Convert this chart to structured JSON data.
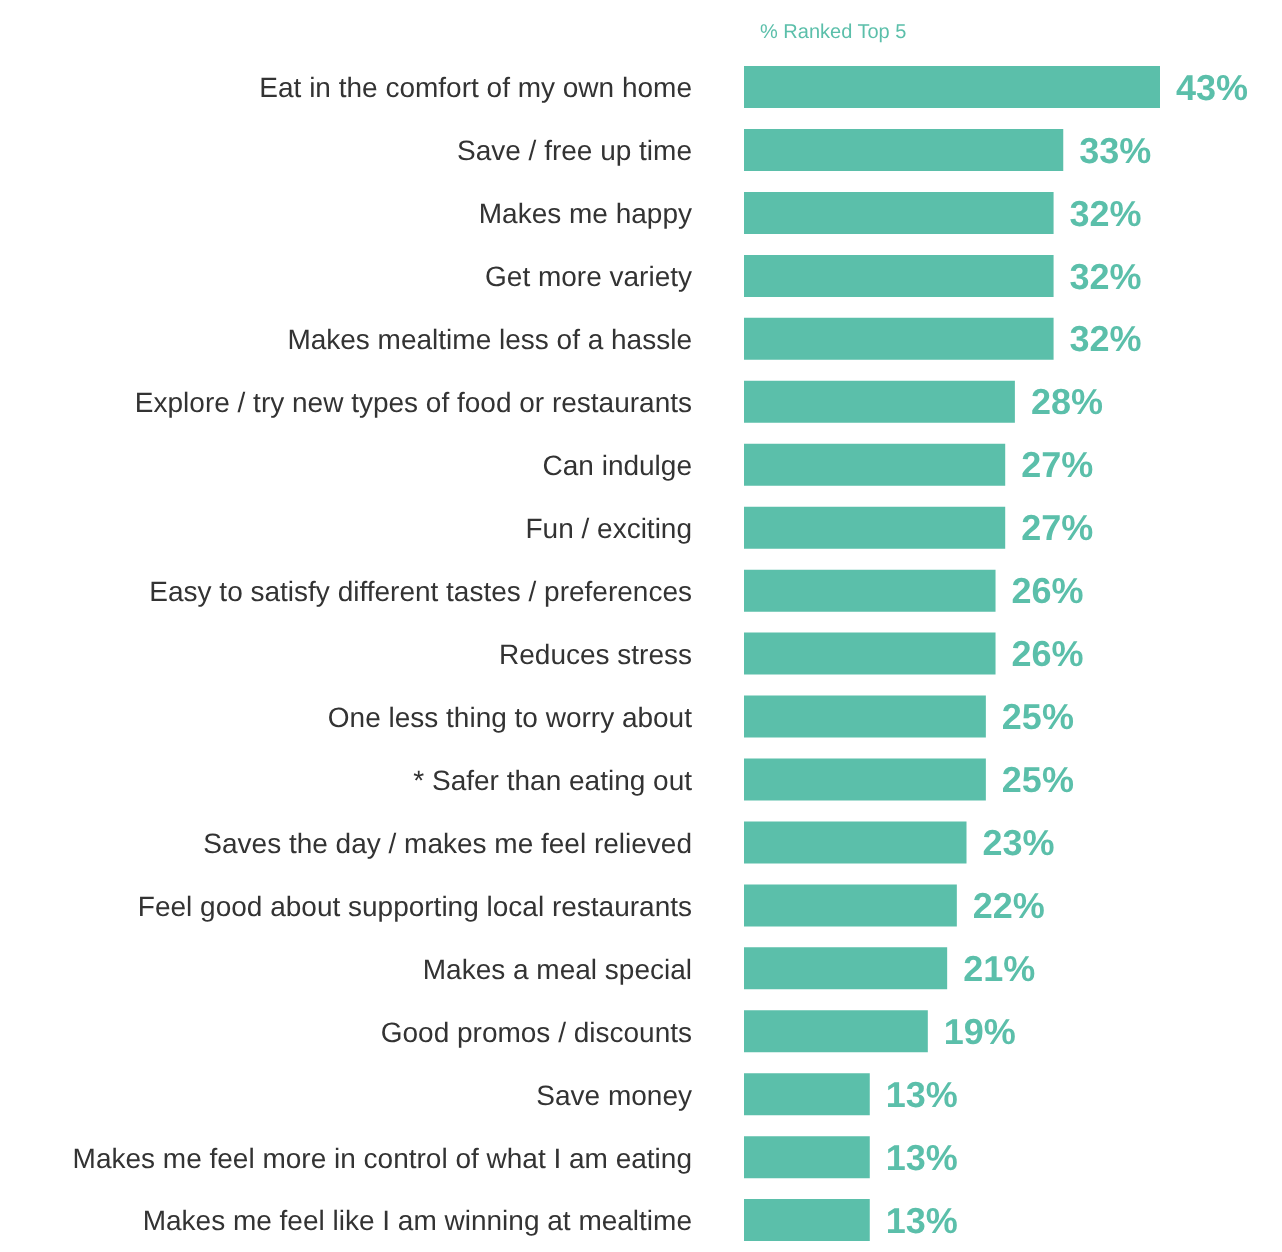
{
  "chart_data": {
    "type": "bar",
    "orientation": "horizontal",
    "subtitle": "% Ranked Top 5",
    "categories": [
      "Eat in the comfort of my own home",
      "Save / free up time",
      "Makes me happy",
      "Get more variety",
      "Makes mealtime less of a hassle",
      "Explore / try new types of food or restaurants",
      "Can indulge",
      "Fun / exciting",
      "Easy to satisfy different tastes / preferences",
      "Reduces stress",
      "One less thing to worry about",
      "* Safer than eating out",
      "Saves the day / makes me feel relieved",
      "Feel good about supporting local restaurants",
      "Makes a meal special",
      "Good promos / discounts",
      "Save money",
      "Makes me feel more in control of what I am eating",
      "Makes me feel like I am winning at mealtime"
    ],
    "values": [
      43,
      33,
      32,
      32,
      32,
      28,
      27,
      27,
      26,
      26,
      25,
      25,
      23,
      22,
      21,
      19,
      13,
      13,
      13
    ],
    "value_labels": [
      "43%",
      "33%",
      "32%",
      "32%",
      "32%",
      "28%",
      "27%",
      "27%",
      "26%",
      "26%",
      "25%",
      "25%",
      "23%",
      "22%",
      "21%",
      "19%",
      "13%",
      "13%",
      "13%"
    ],
    "color": "#5bbfaa",
    "grid": false,
    "legend": false
  }
}
